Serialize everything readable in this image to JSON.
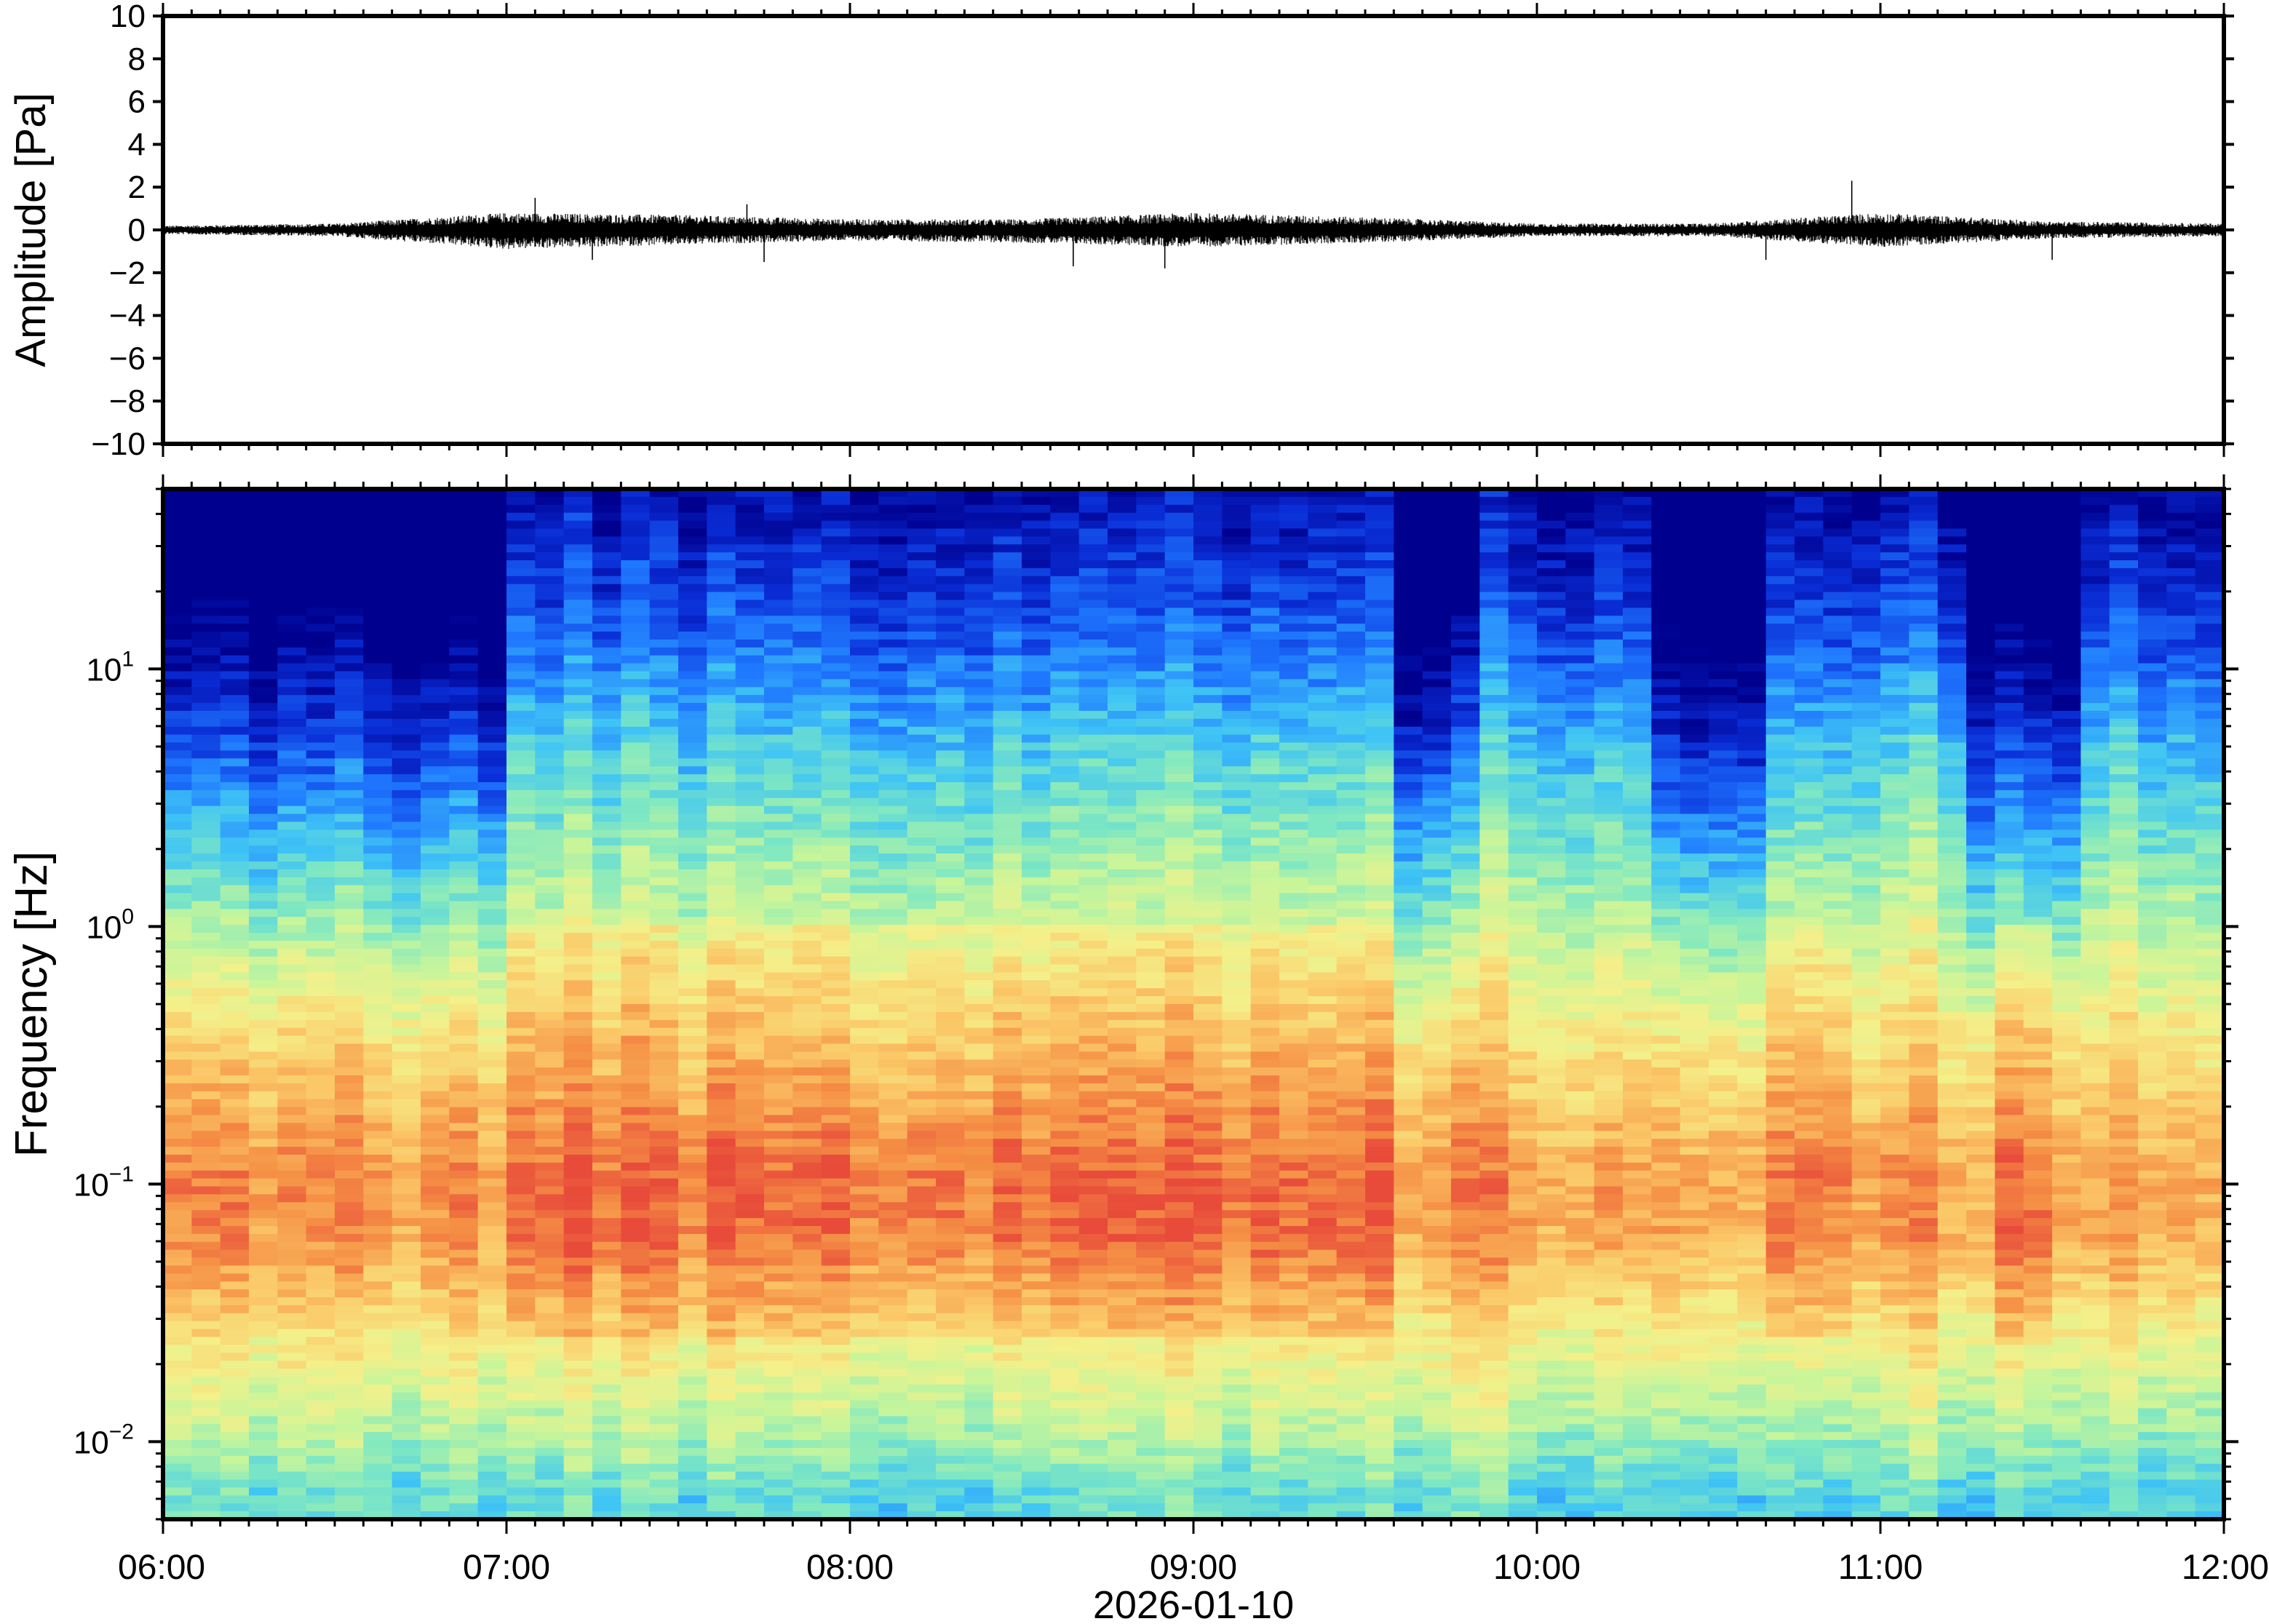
{
  "figure": {
    "date_label": "2026-01-10"
  },
  "chart_data": [
    {
      "type": "line",
      "panel": "waveform",
      "ylabel": "Amplitude [Pa]",
      "ylim": [
        -10,
        10
      ],
      "yticks": [
        -10,
        -8,
        -6,
        -4,
        -2,
        0,
        2,
        4,
        6,
        8,
        10
      ],
      "ytick_labels": [
        "−10",
        "−8",
        "−6",
        "−4",
        "−2",
        "0",
        "2",
        "4",
        "6",
        "8",
        "10"
      ],
      "xlim": [
        "06:00",
        "12:00"
      ],
      "x_step_minutes": 30,
      "x": [
        "06:00",
        "06:30",
        "07:00",
        "07:30",
        "08:00",
        "08:30",
        "09:00",
        "09:30",
        "10:00",
        "10:30",
        "11:00",
        "11:30",
        "12:00"
      ],
      "envelope_max": [
        0.2,
        0.3,
        0.8,
        0.7,
        0.5,
        0.5,
        0.8,
        0.6,
        0.3,
        0.3,
        0.8,
        0.4,
        0.3
      ],
      "envelope_min": [
        -0.2,
        -0.3,
        -0.9,
        -0.7,
        -0.5,
        -0.6,
        -0.8,
        -0.6,
        -0.3,
        -0.3,
        -0.8,
        -0.4,
        -0.3
      ],
      "peaks": [
        {
          "time": "07:05",
          "value": 1.5
        },
        {
          "time": "07:15",
          "value": -1.4
        },
        {
          "time": "07:42",
          "value": 1.2
        },
        {
          "time": "07:45",
          "value": -1.5
        },
        {
          "time": "08:39",
          "value": -1.7
        },
        {
          "time": "08:55",
          "value": -1.8
        },
        {
          "time": "10:55",
          "value": 2.3
        },
        {
          "time": "10:40",
          "value": -1.4
        },
        {
          "time": "11:30",
          "value": -1.4
        }
      ],
      "color": "#000000"
    },
    {
      "type": "heatmap",
      "panel": "spectrogram",
      "ylabel": "Frequency [Hz]",
      "xlabel": "2026-01-10",
      "y_scale": "log",
      "ylim": [
        0.005,
        50
      ],
      "yticks": [
        0.01,
        0.1,
        1,
        10
      ],
      "ytick_labels": [
        {
          "base": "10",
          "exp": "−2"
        },
        {
          "base": "10",
          "exp": "−1"
        },
        {
          "base": "10",
          "exp": "0"
        },
        {
          "base": "10",
          "exp": "1"
        }
      ],
      "xlim": [
        "06:00",
        "12:00"
      ],
      "x_ticks": [
        "06:00",
        "07:00",
        "08:00",
        "09:00",
        "10:00",
        "11:00",
        "12:00"
      ],
      "colormap": "jet-like (dark blue = low power, red = high power)",
      "colormap_stops": [
        "#00008f",
        "#0a2dd6",
        "#1f78ff",
        "#3fc4f5",
        "#7fe8c2",
        "#c8f59a",
        "#f4f08a",
        "#fbc868",
        "#f59045",
        "#e84a3a"
      ],
      "time_columns": 72,
      "freq_bands_hz": [
        0.006,
        0.012,
        0.03,
        0.06,
        0.1,
        0.2,
        0.5,
        1,
        2,
        5,
        10,
        20,
        45
      ],
      "mean_power_profile": [
        0.4,
        0.55,
        0.72,
        0.86,
        0.88,
        0.8,
        0.68,
        0.58,
        0.48,
        0.36,
        0.24,
        0.14,
        0.05
      ],
      "quiet_intervals": [
        {
          "start": "06:00",
          "end": "07:00"
        },
        {
          "start": "09:35",
          "end": "09:50"
        },
        {
          "start": "10:20",
          "end": "10:40"
        },
        {
          "start": "11:15",
          "end": "11:35"
        }
      ],
      "active_intervals": [
        {
          "start": "07:00",
          "end": "09:35"
        },
        {
          "start": "10:40",
          "end": "10:55"
        },
        {
          "start": "11:20",
          "end": "11:30"
        }
      ]
    }
  ]
}
